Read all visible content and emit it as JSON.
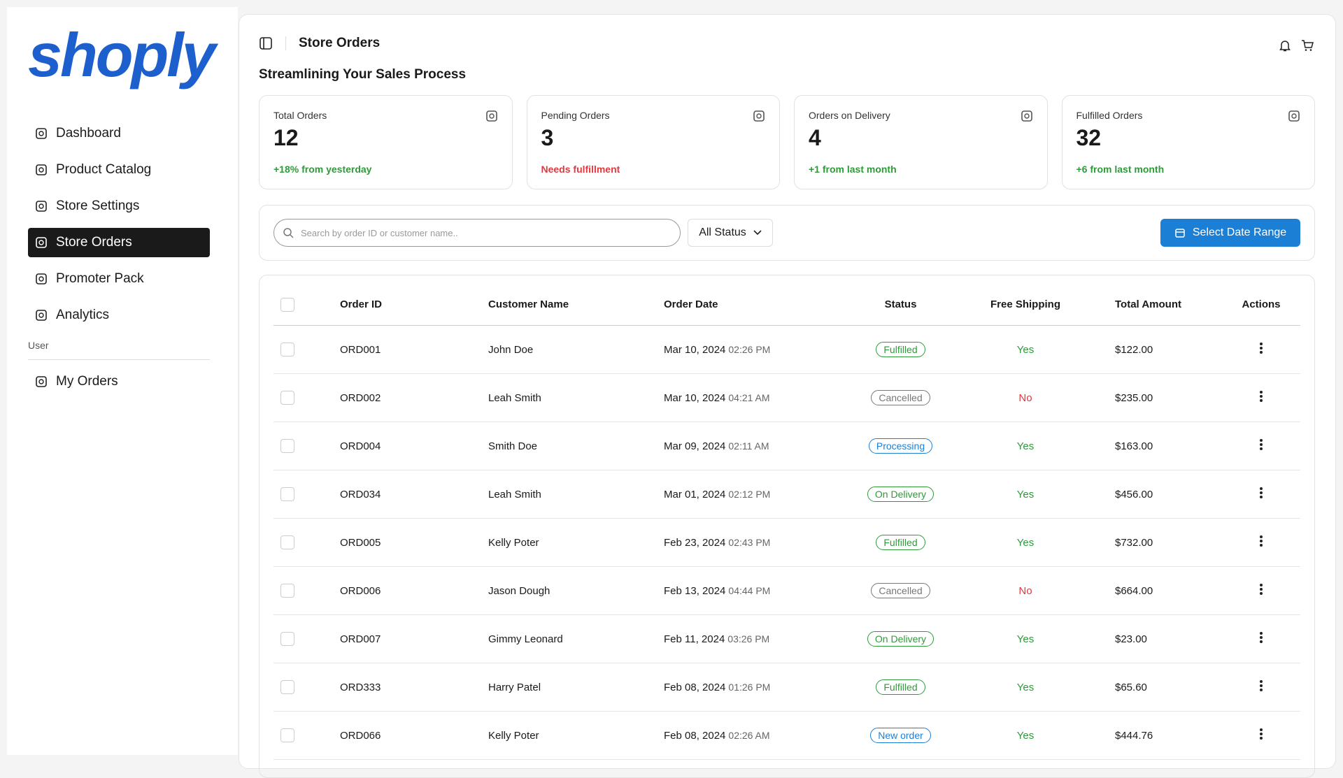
{
  "logo": "shoply",
  "nav": [
    "Dashboard",
    "Product Catalog",
    "Store Settings",
    "Store Orders",
    "Promoter Pack",
    "Analytics"
  ],
  "nav_section": "User",
  "user_nav": [
    "My Orders"
  ],
  "header": {
    "title": "Store Orders",
    "subtitle": "Streamlining Your Sales Process"
  },
  "stats": [
    {
      "label": "Total Orders",
      "value": 12,
      "note": "+18% from yesterday",
      "note_color": "#2f9a3a"
    },
    {
      "label": "Pending Orders",
      "value": 3,
      "note": "Needs fulfillment",
      "note_color": "#e0393e"
    },
    {
      "label": "Orders on Delivery",
      "value": 4,
      "note": "+1 from last month",
      "note_color": "#2f9a3a"
    },
    {
      "label": "Fulfilled Orders",
      "value": 32,
      "note": "+6 from last month",
      "note_color": "#2f9a3a"
    }
  ],
  "filters": {
    "search_placeholder": "Search by order ID or customer name..",
    "status": "All Status",
    "date_button": "Select Date Range"
  },
  "table": {
    "columns": [
      "Order ID",
      "Customer Name",
      "Order Date",
      "Status",
      "Free Shipping",
      "Total Amount",
      "Actions"
    ],
    "rows": [
      {
        "id": "ORD001",
        "customer": "John Doe",
        "date": "Mar 10, 2024",
        "time": "02:26 PM",
        "status": "Fulfilled",
        "status_color": "#2f9a3a",
        "free_shipping": "Yes",
        "shipping_color": "#2f9a3a",
        "total": "$122.00"
      },
      {
        "id": "ORD002",
        "customer": "Leah Smith",
        "date": "Mar 10, 2024",
        "time": "04:21 AM",
        "status": "Cancelled",
        "status_color": "#777777",
        "free_shipping": "No",
        "shipping_color": "#e0393e",
        "total": "$235.00"
      },
      {
        "id": "ORD004",
        "customer": "Smith Doe",
        "date": "Mar 09, 2024",
        "time": "02:11 AM",
        "status": "Processing",
        "status_color": "#1c7fd6",
        "free_shipping": "Yes",
        "shipping_color": "#2f9a3a",
        "total": "$163.00"
      },
      {
        "id": "ORD034",
        "customer": "Leah Smith",
        "date": "Mar 01, 2024",
        "time": "02:12 PM",
        "status": "On Delivery",
        "status_color": "#2f9a3a",
        "free_shipping": "Yes",
        "shipping_color": "#2f9a3a",
        "total": "$456.00"
      },
      {
        "id": "ORD005",
        "customer": "Kelly Poter",
        "date": "Feb 23, 2024",
        "time": "02:43 PM",
        "status": "Fulfilled",
        "status_color": "#2f9a3a",
        "free_shipping": "Yes",
        "shipping_color": "#2f9a3a",
        "total": "$732.00"
      },
      {
        "id": "ORD006",
        "customer": "Jason Dough",
        "date": "Feb 13, 2024",
        "time": "04:44 PM",
        "status": "Cancelled",
        "status_color": "#777777",
        "free_shipping": "No",
        "shipping_color": "#e0393e",
        "total": "$664.00"
      },
      {
        "id": "ORD007",
        "customer": "Gimmy Leonard",
        "date": "Feb 11, 2024",
        "time": "03:26 PM",
        "status": "On Delivery",
        "status_color": "#2f9a3a",
        "free_shipping": "Yes",
        "shipping_color": "#2f9a3a",
        "total": "$23.00"
      },
      {
        "id": "ORD333",
        "customer": "Harry Patel",
        "date": "Feb 08, 2024",
        "time": "01:26 PM",
        "status": "Fulfilled",
        "status_color": "#2f9a3a",
        "free_shipping": "Yes",
        "shipping_color": "#2f9a3a",
        "total": "$65.60"
      },
      {
        "id": "ORD066",
        "customer": "Kelly Poter",
        "date": "Feb 08, 2024",
        "time": "02:26 AM",
        "status": "New order",
        "status_color": "#1c7fd6",
        "free_shipping": "Yes",
        "shipping_color": "#2f9a3a",
        "total": "$444.76"
      }
    ]
  }
}
